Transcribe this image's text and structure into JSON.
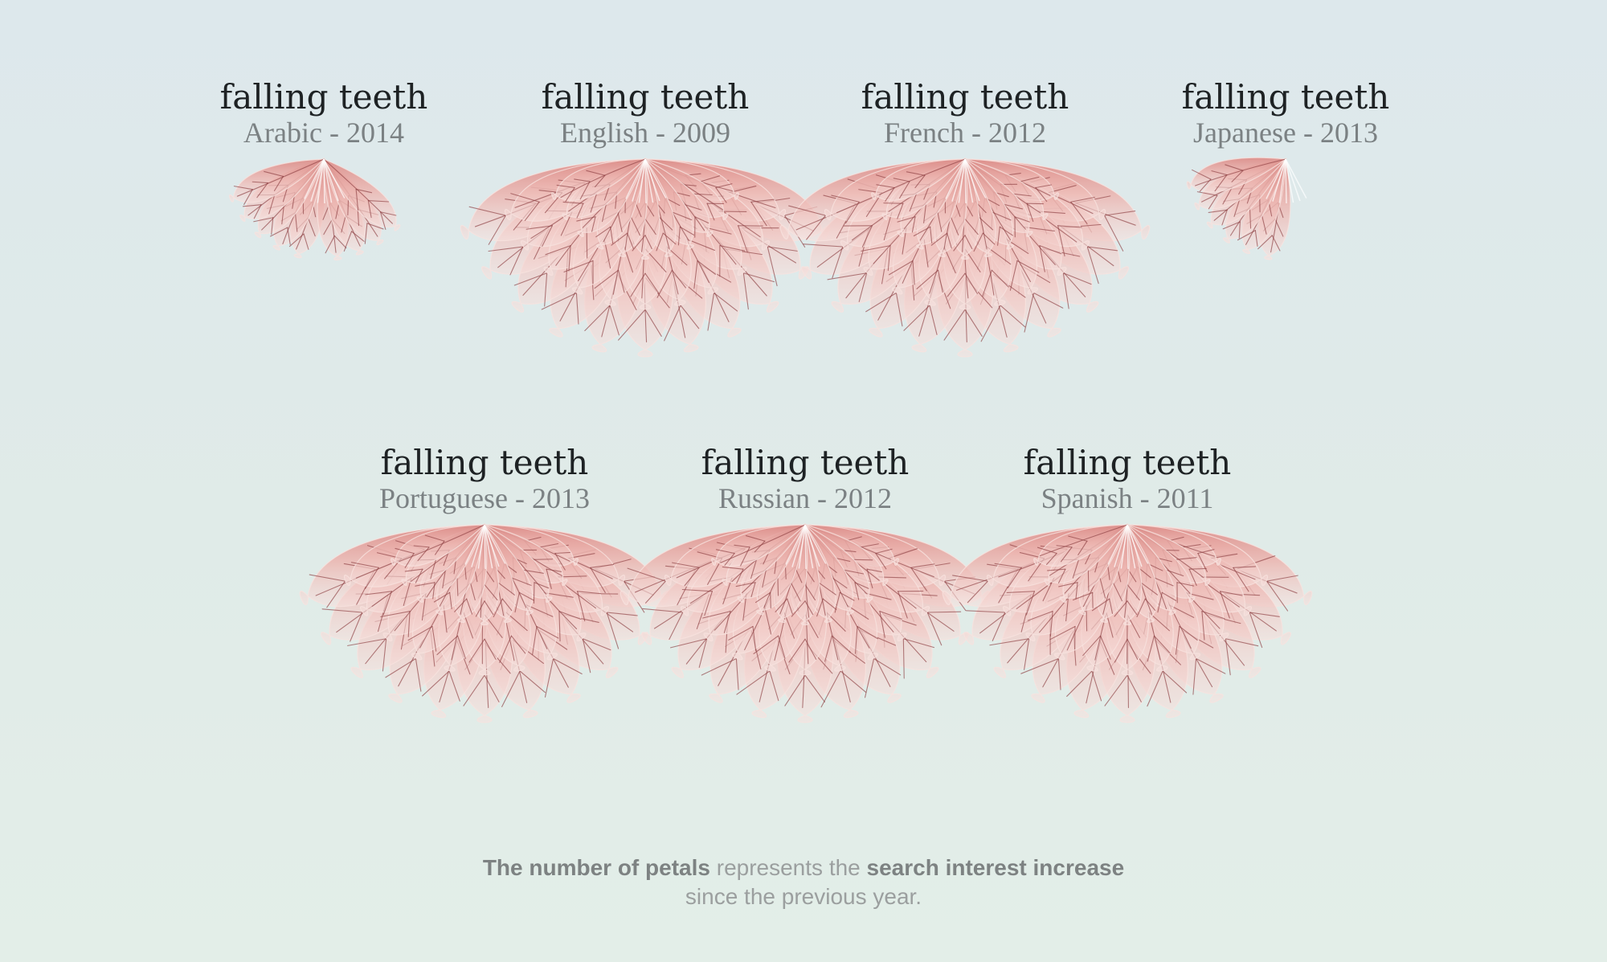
{
  "chart_data": {
    "type": "radial-petal",
    "encoding": "The number of petals represents the search interest increase since the previous year.",
    "flowers": [
      {
        "term": "falling teeth",
        "language": "Arabic - 2014",
        "petals": 9,
        "row": 1
      },
      {
        "term": "falling teeth",
        "language": "English - 2009",
        "petals": 33,
        "row": 1
      },
      {
        "term": "falling teeth",
        "language": "French - 2012",
        "petals": 33,
        "row": 1
      },
      {
        "term": "falling teeth",
        "language": "Japanese - 2013",
        "petals": 6,
        "row": 1
      },
      {
        "term": "falling teeth",
        "language": "Portuguese - 2013",
        "petals": 33,
        "row": 2
      },
      {
        "term": "falling teeth",
        "language": "Russian - 2012",
        "petals": 33,
        "row": 2
      },
      {
        "term": "falling teeth",
        "language": "Spanish - 2011",
        "petals": 33,
        "row": 2
      }
    ]
  },
  "caption": {
    "bold1": "The number of petals",
    "text1": " represents the ",
    "bold2": "search interest increase",
    "line2": "since the previous year."
  },
  "colors": {
    "petal_light": "#f7e2df",
    "petal_mid": "#ecb5b0",
    "petal_deep": "#dc8e8a",
    "vein": "#8c3d40",
    "title": "#1e2224",
    "subtitle": "#7b8183",
    "caption": "#9b9f9f",
    "background_top": "#dde8ec",
    "background_bottom": "#e3eee8"
  }
}
